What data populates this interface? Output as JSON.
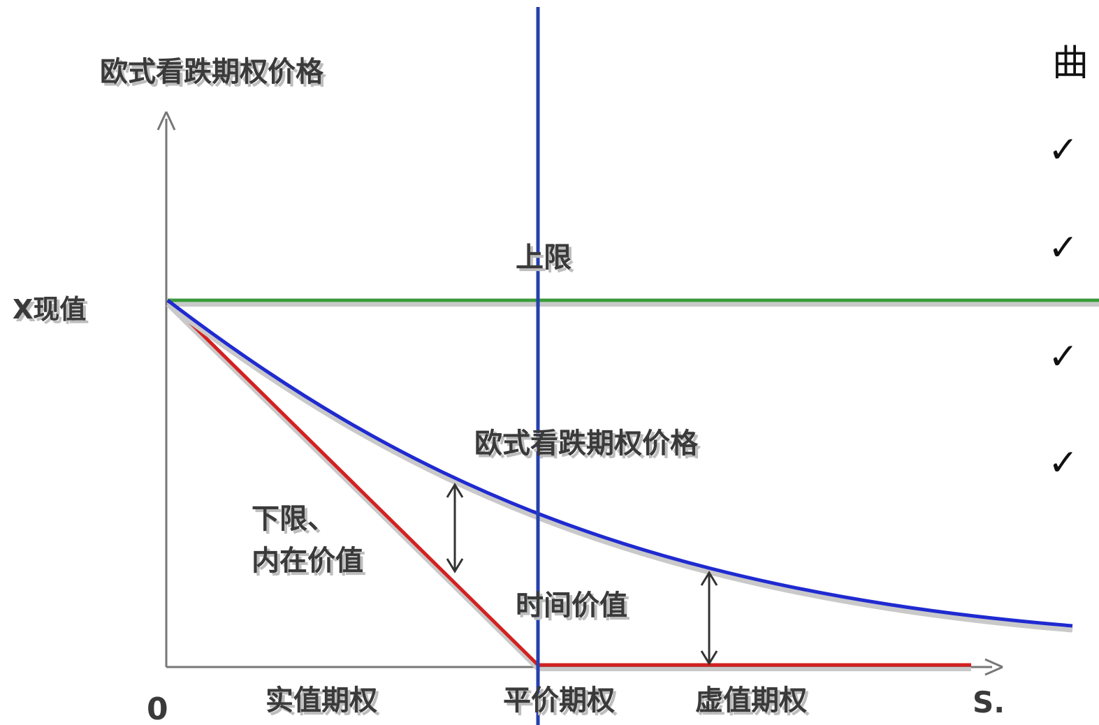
{
  "diagram": {
    "y_axis_title": "欧式看跌期权价格",
    "y_intercept_label": "X现值",
    "origin_label": "0",
    "x_axis_end_label": "S.",
    "upper_bound_label": "上限",
    "price_curve_label": "欧式看跌期权价格",
    "lower_bound_label_line1": "下限、",
    "lower_bound_label_line2": "内在价值",
    "time_value_label": "时间价值",
    "region_itm_label": "实值期权",
    "region_atm_label": "平价期权",
    "region_otm_label": "虚值期权",
    "colors": {
      "upper_bound": "#3a9a3a",
      "price_curve": "#1f2ad0",
      "intrinsic_value": "#d42020",
      "strike_line": "#2440b0",
      "axes": "#777777"
    }
  },
  "side_text": {
    "heading_char": "曲",
    "bullet_glyph": "✓",
    "bullet_count": 4
  }
}
